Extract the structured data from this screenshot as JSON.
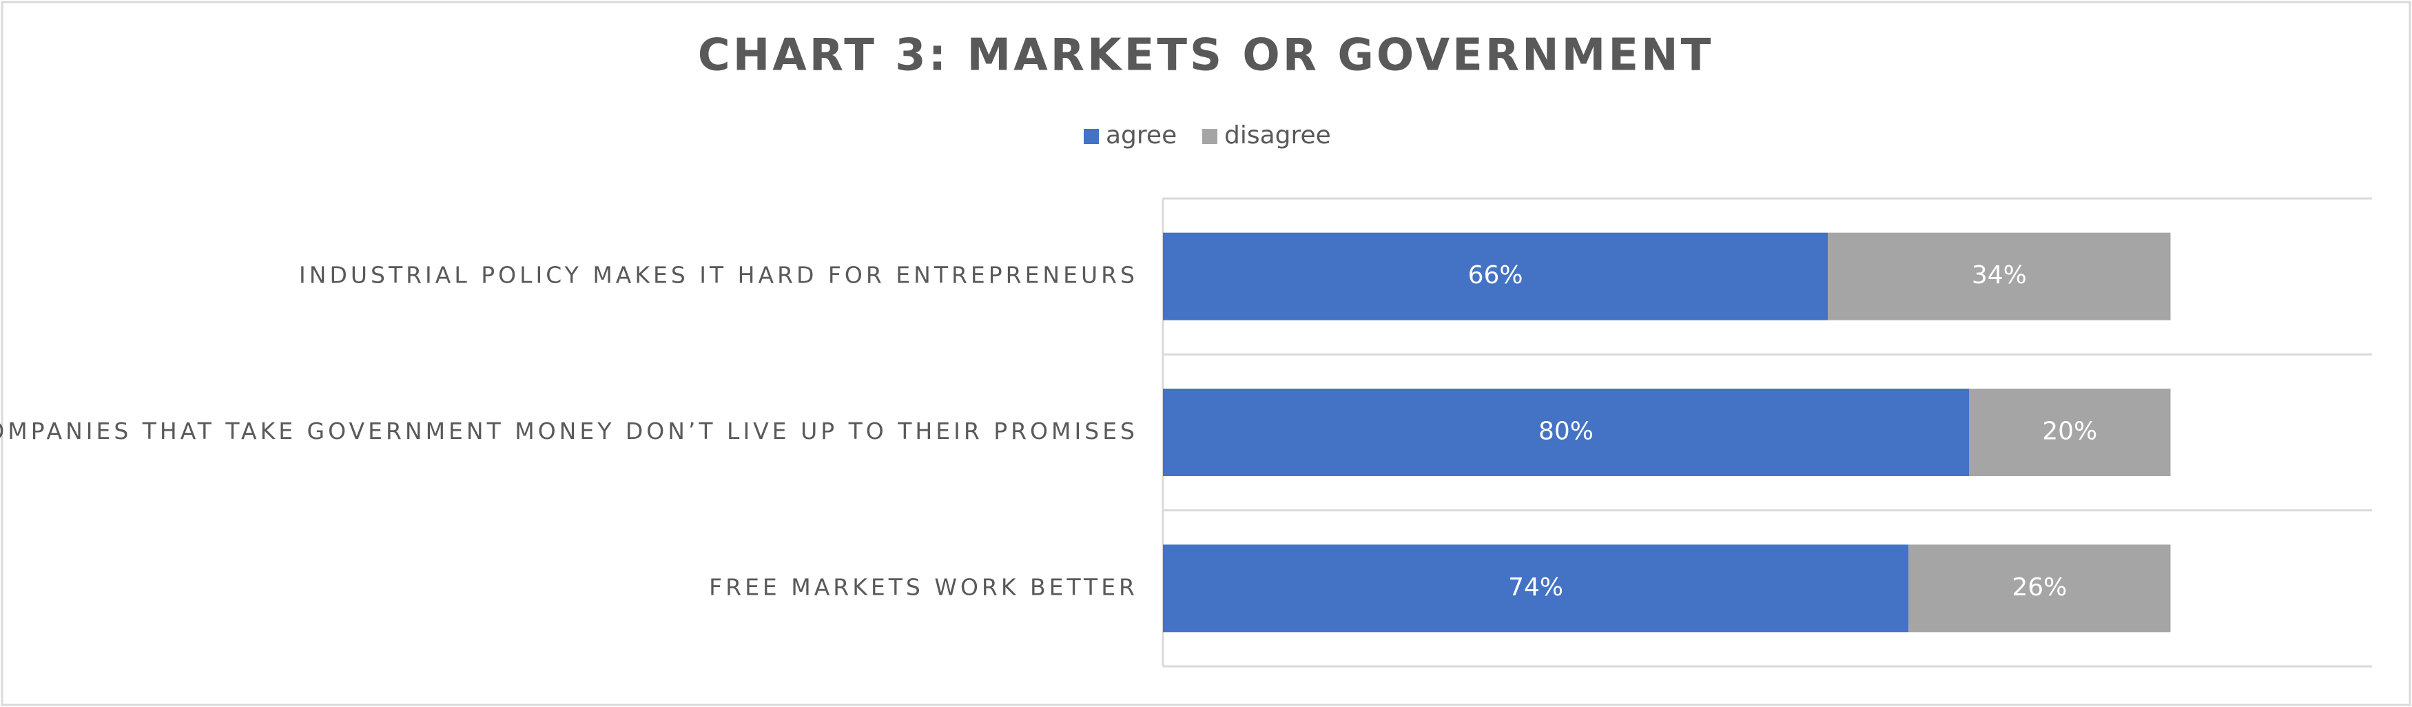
{
  "chart_data": {
    "type": "stacked-bar-horizontal",
    "title": "CHART 3: MARKETS OR GOVERNMENT",
    "categories": [
      "INDUSTRIAL POLICY MAKES IT HARD FOR ENTREPRENEURS",
      "COMPANIES THAT TAKE GOVERNMENT MONEY DON’T LIVE UP TO THEIR PROMISES",
      "FREE MARKETS WORK BETTER"
    ],
    "series": [
      {
        "name": "agree",
        "color": "#4472c4",
        "values": [
          66,
          80,
          74
        ],
        "value_labels": [
          "66%",
          "80%",
          "74%"
        ]
      },
      {
        "name": "disagree",
        "color": "#a5a5a5",
        "values": [
          34,
          20,
          26
        ],
        "value_labels": [
          "34%",
          "20%",
          "26%"
        ]
      }
    ],
    "xlim": [
      0,
      120
    ],
    "legend": "top"
  }
}
